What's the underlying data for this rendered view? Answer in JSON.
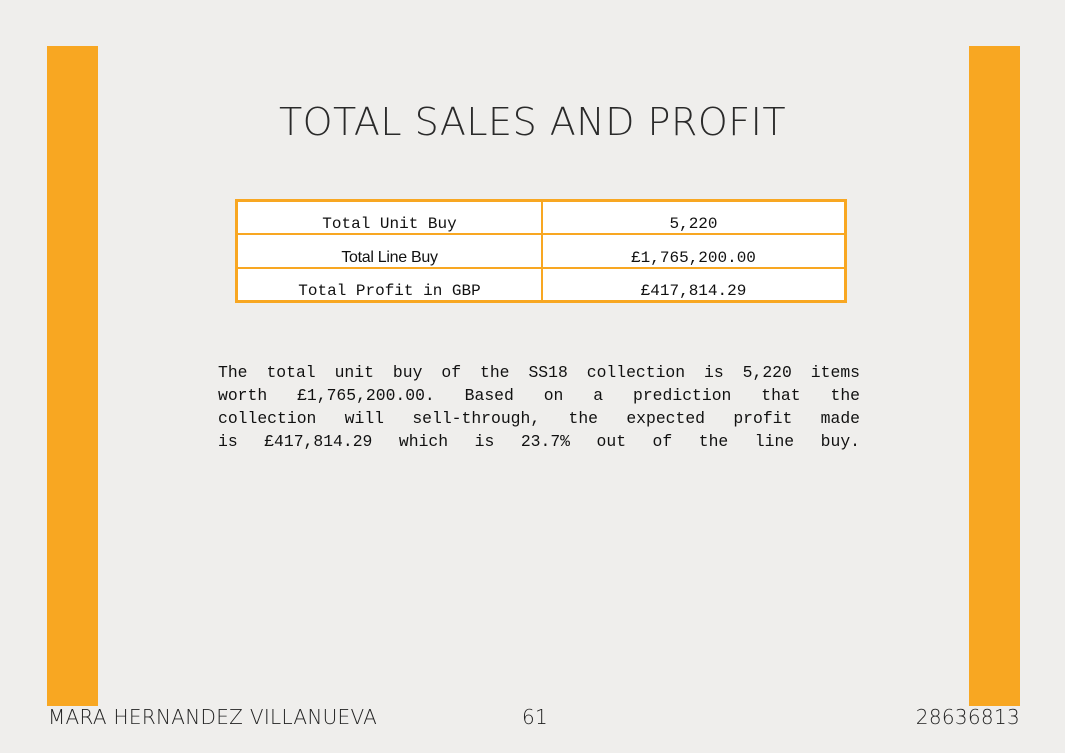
{
  "page": {
    "title": "TOTAL SALES AND PROFIT",
    "accent_color": "#f8a722",
    "background_color": "#efeeec"
  },
  "table": {
    "rows": [
      {
        "label": "Total Unit Buy",
        "value": "5,220"
      },
      {
        "label": "Total Line Buy",
        "value": "£1,765,200.00"
      },
      {
        "label": "Total Profit in GBP",
        "value": "£417,814.29"
      }
    ]
  },
  "body_text": {
    "lines": [
      "The total unit buy of the SS18 collection is 5,220 items",
      "worth £1,765,200.00. Based on a prediction that the",
      "collection will sell-through, the expected profit made",
      "is £417,814.29 which is 23.7% out of the line buy."
    ]
  },
  "footer": {
    "author": "MARA HERNANDEZ VILLANUEVA",
    "page_number": "61",
    "student_id": "28636813"
  }
}
